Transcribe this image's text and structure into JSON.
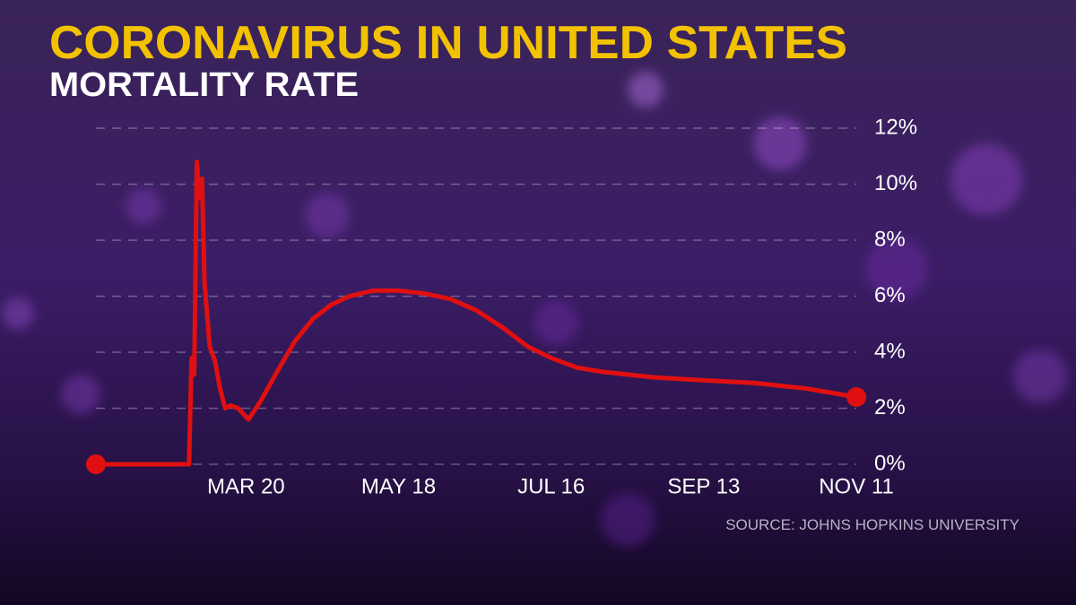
{
  "chart_data": {
    "type": "line",
    "title": "CORONAVIRUS IN UNITED STATES",
    "subtitle": "MORTALITY RATE",
    "source": "SOURCE: JOHNS HOPKINS UNIVERSITY",
    "color": "#e01010",
    "x": [
      "JAN 22",
      "FEB 27",
      "FEB 28",
      "FEB 29",
      "MAR 1",
      "MAR 2",
      "MAR 3",
      "MAR 4",
      "MAR 6",
      "MAR 8",
      "MAR 10",
      "MAR 12",
      "MAR 14",
      "MAR 17",
      "MAR 21",
      "MAR 26",
      "APR 1",
      "APR 8",
      "APR 15",
      "APR 22",
      "APR 29",
      "MAY 8",
      "MAY 18",
      "MAY 28",
      "JUN 7",
      "JUN 17",
      "JUN 27",
      "JUL 7",
      "JUL 16",
      "JUL 26",
      "AUG 5",
      "AUG 15",
      "AUG 25",
      "SEP 13",
      "OCT 3",
      "OCT 23",
      "NOV 11"
    ],
    "values": [
      0,
      0,
      3.8,
      3.2,
      10.8,
      9.5,
      10.2,
      6.5,
      4.2,
      3.7,
      2.7,
      2.0,
      2.1,
      2.0,
      1.6,
      2.3,
      3.3,
      4.4,
      5.2,
      5.7,
      6.0,
      6.2,
      6.2,
      6.1,
      5.9,
      5.5,
      4.9,
      4.2,
      3.8,
      3.45,
      3.3,
      3.2,
      3.1,
      3.0,
      2.9,
      2.7,
      2.4
    ],
    "xticks": [
      "MAR 20",
      "MAY 18",
      "JUL 16",
      "SEP 13",
      "NOV 11"
    ],
    "ylim": [
      0,
      12
    ],
    "yticks": [
      {
        "value": 0,
        "label": "0%"
      },
      {
        "value": 2,
        "label": "2%"
      },
      {
        "value": 4,
        "label": "4%"
      },
      {
        "value": 6,
        "label": "6%"
      },
      {
        "value": 8,
        "label": "8%"
      },
      {
        "value": 10,
        "label": "10%"
      },
      {
        "value": 12,
        "label": "12%"
      }
    ],
    "grid": true
  }
}
